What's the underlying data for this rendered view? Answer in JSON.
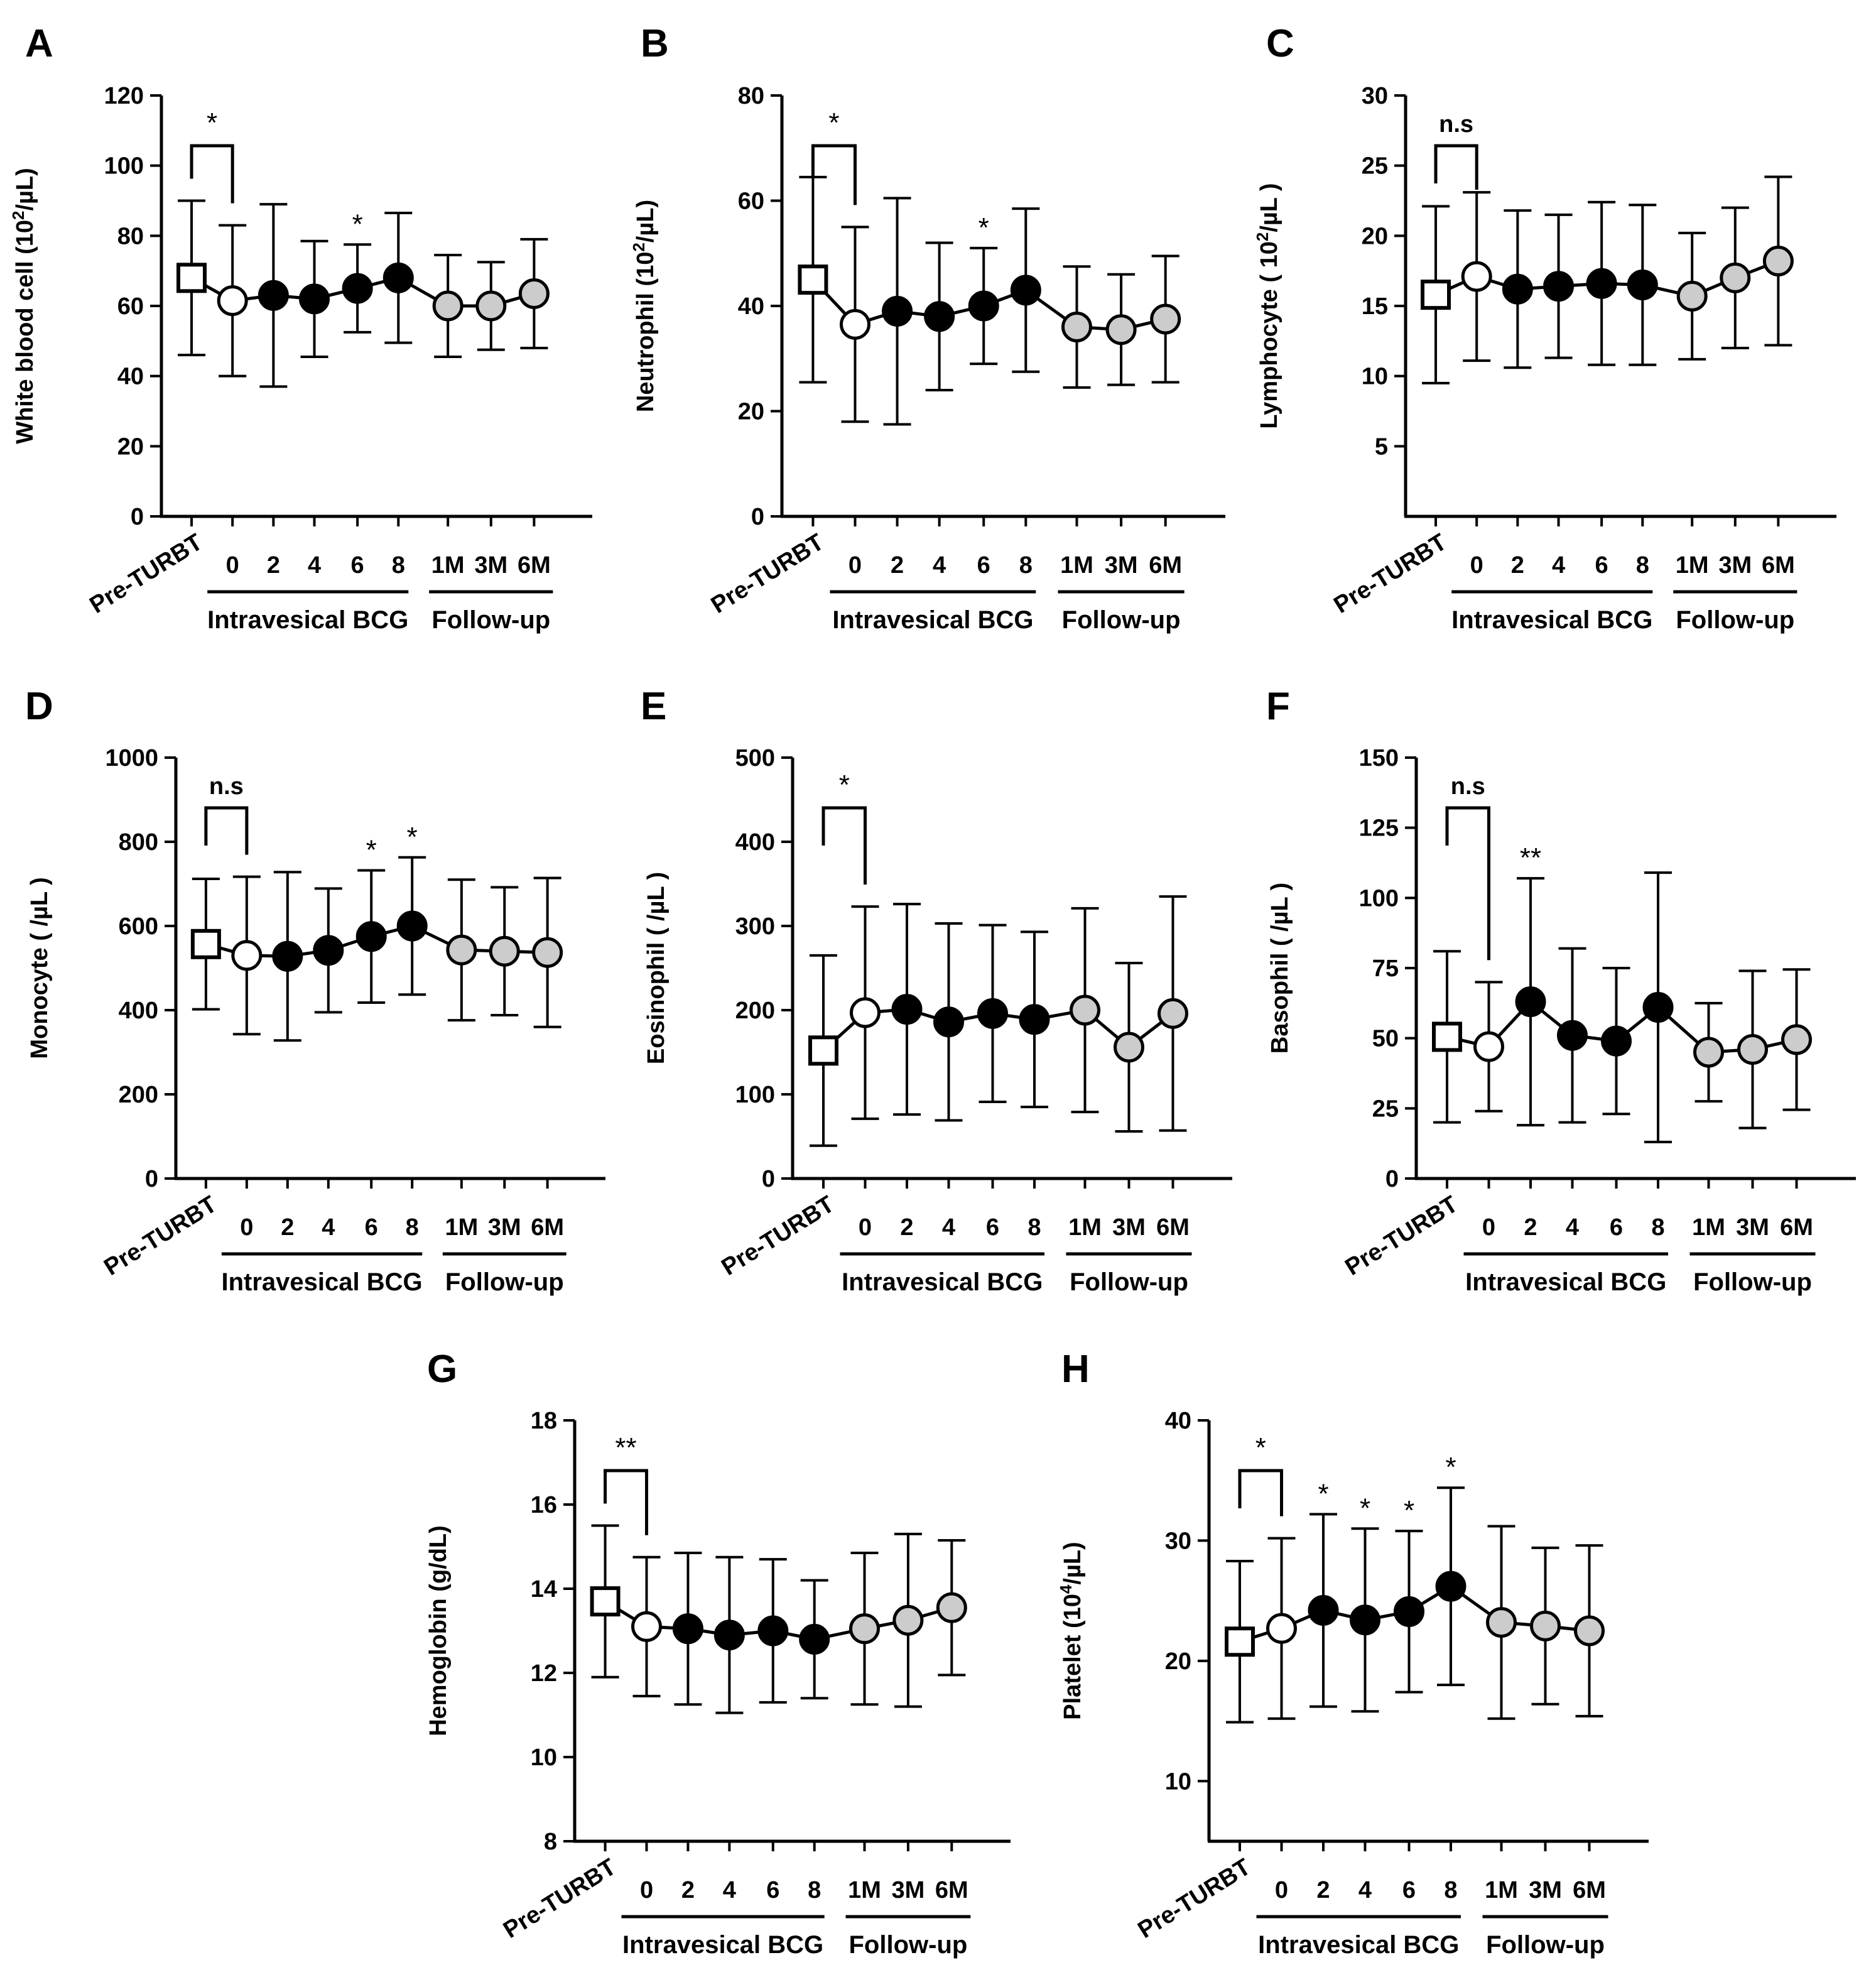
{
  "figure": {
    "categories": [
      "Pre-TURBT",
      "0",
      "2",
      "4",
      "6",
      "8",
      "1M",
      "3M",
      "6M"
    ],
    "group_labels": [
      "Intravesical BCG",
      "Follow-up"
    ],
    "colors": {
      "line": "#000000",
      "pre": "#ffffff",
      "zero": "#ffffff",
      "bcg": "#000000",
      "followup": "#cccccc"
    }
  },
  "chart_data": [
    {
      "type": "line",
      "panel": "A",
      "title": "",
      "ylabel_main": "White blood cell (10",
      "ylabel_sup": "2",
      "ylabel_tail": "/µL)",
      "ylim": [
        0,
        120
      ],
      "yticks": [
        0,
        20,
        40,
        60,
        80,
        100,
        120
      ],
      "categories": [
        "Pre-TURBT",
        "0",
        "2",
        "4",
        "6",
        "8",
        "1M",
        "3M",
        "6M"
      ],
      "means": [
        68,
        61.5,
        63,
        62,
        65,
        68,
        60,
        60,
        63.5
      ],
      "sd": [
        22,
        21.5,
        26,
        16.5,
        12.5,
        18.5,
        14.5,
        12.5,
        15.5
      ],
      "bracket_label": "*",
      "point_marks": [
        {
          "index": 4,
          "label": "*"
        }
      ]
    },
    {
      "type": "line",
      "panel": "B",
      "title": "",
      "ylabel_main": "Neutrophil (10",
      "ylabel_sup": "2",
      "ylabel_tail": "/µL)",
      "ylim": [
        0,
        80
      ],
      "yticks": [
        0,
        20,
        40,
        60,
        80
      ],
      "categories": [
        "Pre-TURBT",
        "0",
        "2",
        "4",
        "6",
        "8",
        "1M",
        "3M",
        "6M"
      ],
      "means": [
        45,
        36.5,
        39,
        38,
        40,
        43,
        36,
        35.5,
        37.5
      ],
      "sd": [
        19.5,
        18.5,
        21.5,
        14,
        11,
        15.5,
        11.5,
        10.5,
        12
      ],
      "bracket_label": "*",
      "point_marks": [
        {
          "index": 4,
          "label": "*"
        }
      ]
    },
    {
      "type": "line",
      "panel": "C",
      "title": "",
      "ylabel_main": "Lymphocyte ( 10",
      "ylabel_sup": "2",
      "ylabel_tail": "/µL )",
      "ylim": [
        0,
        30
      ],
      "yticks": [
        5,
        10,
        15,
        20,
        25,
        30
      ],
      "categories": [
        "Pre-TURBT",
        "0",
        "2",
        "4",
        "6",
        "8",
        "1M",
        "3M",
        "6M"
      ],
      "means": [
        15.8,
        17.1,
        16.2,
        16.4,
        16.6,
        16.5,
        15.7,
        17,
        18.2
      ],
      "sd": [
        6.3,
        6,
        5.6,
        5.1,
        5.8,
        5.7,
        4.5,
        5,
        6
      ],
      "bracket_label": "n.s",
      "point_marks": []
    },
    {
      "type": "line",
      "panel": "D",
      "title": "",
      "ylabel_main": "Monocyte ( /µL )",
      "ylabel_sup": "",
      "ylabel_tail": "",
      "ylim": [
        0,
        1000
      ],
      "yticks": [
        0,
        200,
        400,
        600,
        800,
        1000
      ],
      "categories": [
        "Pre-TURBT",
        "0",
        "2",
        "4",
        "6",
        "8",
        "1M",
        "3M",
        "6M"
      ],
      "means": [
        557,
        530,
        528,
        542,
        575,
        600,
        543,
        540,
        537
      ],
      "sd": [
        155,
        187,
        200,
        147,
        157,
        163,
        167,
        152,
        177
      ],
      "bracket_label": "n.s",
      "point_marks": [
        {
          "index": 4,
          "label": "*"
        },
        {
          "index": 5,
          "label": "*"
        }
      ]
    },
    {
      "type": "line",
      "panel": "E",
      "title": "",
      "ylabel_main": "Eosinophil ( /µL )",
      "ylabel_sup": "",
      "ylabel_tail": "",
      "ylim": [
        0,
        500
      ],
      "yticks": [
        0,
        100,
        200,
        300,
        400,
        500
      ],
      "categories": [
        "Pre-TURBT",
        "0",
        "2",
        "4",
        "6",
        "8",
        "1M",
        "3M",
        "6M"
      ],
      "means": [
        152,
        197,
        201,
        186,
        196,
        189,
        200,
        156,
        196
      ],
      "sd": [
        113,
        126,
        125,
        117,
        105,
        104,
        121,
        100,
        139
      ],
      "bracket_label": "*",
      "point_marks": []
    },
    {
      "type": "line",
      "panel": "F",
      "title": "",
      "ylabel_main": "Basophil ( /µL )",
      "ylabel_sup": "",
      "ylabel_tail": "",
      "ylim": [
        0,
        150
      ],
      "yticks": [
        0,
        25,
        50,
        75,
        100,
        125,
        150
      ],
      "categories": [
        "Pre-TURBT",
        "0",
        "2",
        "4",
        "6",
        "8",
        "1M",
        "3M",
        "6M"
      ],
      "means": [
        50.5,
        47,
        63,
        51,
        49,
        61,
        45,
        46,
        49.5
      ],
      "sd": [
        30.5,
        23,
        44,
        31,
        26,
        48,
        17.5,
        28,
        25
      ],
      "bracket_label": "n.s",
      "point_marks": [
        {
          "index": 2,
          "label": "**"
        }
      ]
    },
    {
      "type": "line",
      "panel": "G",
      "title": "",
      "ylabel_main": "Hemoglobin (g/dL)",
      "ylabel_sup": "",
      "ylabel_tail": "",
      "ylim": [
        8,
        18
      ],
      "yticks": [
        8,
        10,
        12,
        14,
        16,
        18
      ],
      "categories": [
        "Pre-TURBT",
        "0",
        "2",
        "4",
        "6",
        "8",
        "1M",
        "3M",
        "6M"
      ],
      "means": [
        13.7,
        13.1,
        13.05,
        12.9,
        13,
        12.8,
        13.05,
        13.25,
        13.55
      ],
      "sd": [
        1.8,
        1.65,
        1.8,
        1.85,
        1.7,
        1.4,
        1.8,
        2.05,
        1.6
      ],
      "bracket_label": "**",
      "point_marks": []
    },
    {
      "type": "line",
      "panel": "H",
      "title": "",
      "ylabel_main": "Platelet (10",
      "ylabel_sup": "4",
      "ylabel_tail": "/µL)",
      "ylim": [
        5,
        40
      ],
      "yticks": [
        10,
        20,
        30,
        40
      ],
      "categories": [
        "Pre-TURBT",
        "0",
        "2",
        "4",
        "6",
        "8",
        "1M",
        "3M",
        "6M"
      ],
      "means": [
        21.6,
        22.7,
        24.2,
        23.4,
        24.1,
        26.2,
        23.2,
        22.9,
        22.5
      ],
      "sd": [
        6.7,
        7.5,
        8,
        7.6,
        6.7,
        8.2,
        8,
        6.5,
        7.1
      ],
      "bracket_label": "*",
      "point_marks": [
        {
          "index": 2,
          "label": "*"
        },
        {
          "index": 3,
          "label": "*"
        },
        {
          "index": 4,
          "label": "*"
        },
        {
          "index": 5,
          "label": "*"
        }
      ]
    }
  ]
}
